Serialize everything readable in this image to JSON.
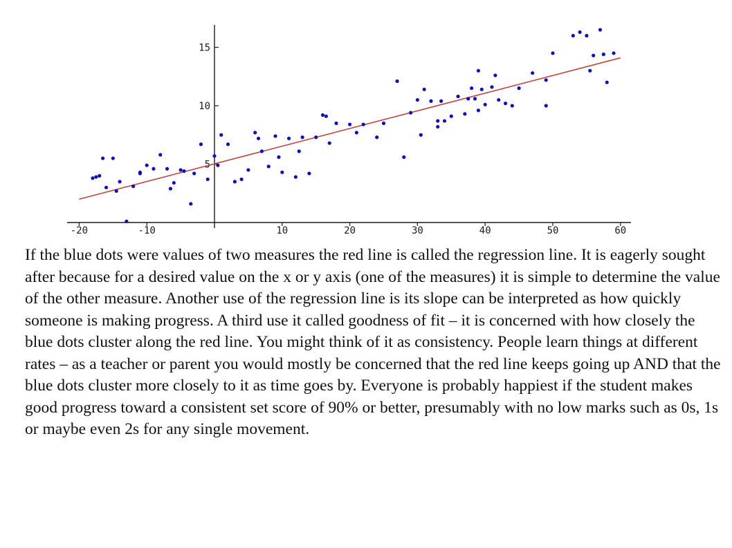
{
  "chart_data": {
    "type": "scatter",
    "title": "",
    "xlabel": "",
    "ylabel": "",
    "xlim": [
      -21,
      61
    ],
    "ylim": [
      0,
      17
    ],
    "x_ticks": [
      -20,
      -10,
      10,
      20,
      30,
      40,
      50,
      60
    ],
    "y_ticks": [
      5,
      10,
      15
    ],
    "grid": false,
    "legend": "none",
    "colors": {
      "points": "#1010b8",
      "regression_line": "#c0453f",
      "axes": "#1a1a1a"
    },
    "series": [
      {
        "kind": "points",
        "x": [
          -18,
          -17.5,
          -17,
          -16.5,
          -16,
          -15,
          -14.5,
          -14,
          -13,
          -12,
          -11,
          -11,
          -10,
          -9,
          -8,
          -7,
          -6.5,
          -6,
          -5,
          -4.5,
          -3.5,
          -3,
          -2,
          -1,
          0,
          0.5,
          1,
          2,
          3,
          4,
          5,
          6,
          6.5,
          7,
          8,
          9,
          9.5,
          10,
          11,
          12,
          12.5,
          13,
          14,
          15,
          16,
          16.5,
          17,
          18,
          20,
          21,
          22,
          24,
          25,
          27,
          28,
          29,
          30,
          30.5,
          31,
          32,
          33,
          33,
          33.5,
          34,
          35,
          36,
          37,
          37.5,
          38,
          38.5,
          39,
          39,
          39.5,
          40,
          41,
          41.5,
          42,
          43,
          44,
          45,
          47,
          49,
          49,
          50,
          53,
          54,
          55,
          55.5,
          56,
          57,
          57.5,
          58,
          59
        ],
        "y": [
          3.8,
          3.9,
          4.0,
          5.5,
          3.0,
          5.5,
          2.7,
          3.5,
          0.1,
          3.1,
          4.2,
          4.3,
          4.9,
          4.6,
          5.8,
          4.6,
          2.9,
          3.4,
          4.5,
          4.4,
          1.6,
          4.2,
          6.7,
          3.7,
          5.7,
          4.9,
          7.5,
          6.7,
          3.5,
          3.7,
          4.5,
          7.7,
          7.2,
          6.1,
          4.8,
          7.4,
          5.6,
          4.3,
          7.2,
          3.9,
          6.1,
          7.3,
          4.2,
          7.3,
          9.2,
          9.1,
          6.8,
          8.5,
          8.4,
          7.7,
          8.4,
          7.3,
          8.5,
          12.1,
          5.6,
          9.4,
          10.5,
          7.5,
          11.4,
          10.4,
          8.2,
          8.7,
          10.4,
          8.7,
          9.1,
          10.8,
          9.3,
          10.6,
          11.5,
          10.6,
          13.0,
          9.6,
          11.4,
          10.1,
          11.6,
          12.6,
          10.5,
          10.2,
          10.0,
          11.5,
          12.8,
          12.2,
          10.0,
          14.5,
          16.0,
          16.3,
          16.0,
          13.0,
          14.3,
          16.5,
          14.4,
          12.0,
          14.5
        ]
      },
      {
        "kind": "regression-line",
        "x": [
          -20,
          60
        ],
        "y": [
          2.0,
          14.1
        ]
      }
    ]
  },
  "caption": "If the blue dots were values of two measures the red line is called the regression line. It is eagerly sought after because for a desired value on the x or y axis (one of the measures) it is simple to determine the value of the other measure. Another use of the regression line is its slope can be interpreted as how quickly someone is making progress. A third use it called goodness of fit – it is concerned with how closely the blue dots cluster along the red line. You might think of it as consistency. People learn things at different rates – as a teacher or parent you would mostly be concerned that the red line keeps going up AND that the blue dots cluster more closely to it as time goes by. Everyone is probably happiest if the student makes good progress toward a consistent set score of 90% or better, presumably with no low marks such as 0s, 1s or maybe even 2s for any single movement."
}
